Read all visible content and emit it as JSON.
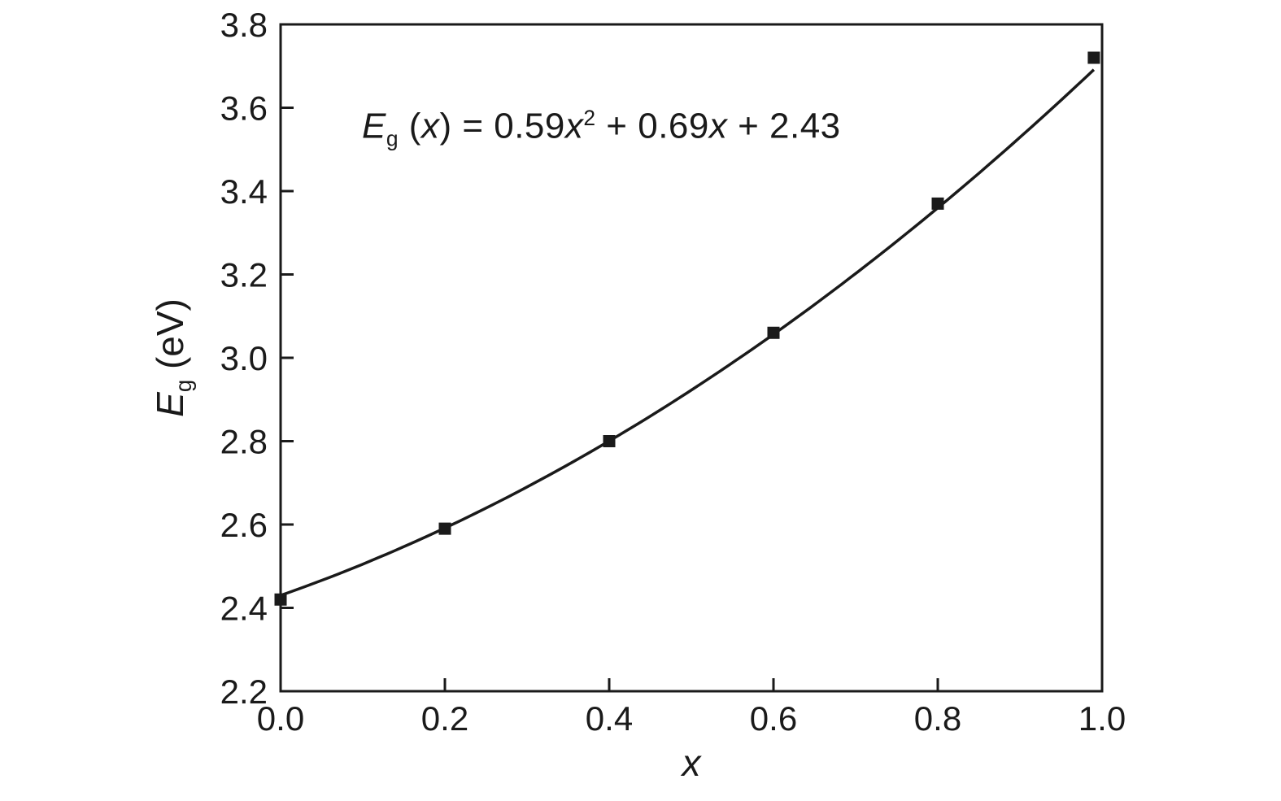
{
  "chart_data": {
    "type": "line",
    "title": "",
    "xlabel": "x",
    "ylabel": "Eg (eV)",
    "xlim": [
      0.0,
      1.0
    ],
    "ylim": [
      2.2,
      3.8
    ],
    "x_ticks": [
      0.0,
      0.2,
      0.4,
      0.6,
      0.8,
      1.0
    ],
    "y_ticks": [
      2.2,
      2.4,
      2.6,
      2.8,
      3.0,
      3.2,
      3.4,
      3.6,
      3.8
    ],
    "grid": false,
    "legend": "none",
    "equation_text": "Eg (x) = 0.59x² + 0.69x + 2.43",
    "equation": {
      "var": "E",
      "sub": "g",
      "pre_arg": " (",
      "arg": "x",
      "post_arg": ") = ",
      "c1": "0.59",
      "v1": "x",
      "exp": "2",
      "op1": " + ",
      "c2": "0.69",
      "v2": "x",
      "op2": " + ",
      "c3": "2.43"
    },
    "fit_coefficients": {
      "a": 0.59,
      "b": 0.69,
      "c": 2.43
    },
    "series": [
      {
        "name": "measured-band-gap-points",
        "marker": "square",
        "x": [
          0.0,
          0.2,
          0.4,
          0.6,
          0.8,
          0.99
        ],
        "y": [
          2.42,
          2.59,
          2.8,
          3.06,
          3.37,
          3.72
        ]
      },
      {
        "name": "quadratic-fit-curve",
        "type": "quadratic-fit"
      }
    ],
    "axis_titles": {
      "y_var": "E",
      "y_sub": "g",
      "y_units": " (eV)",
      "x_var": "x"
    },
    "colors": {
      "axis": "#1a1a1a",
      "line": "#1a1a1a",
      "marker": "#1a1a1a",
      "background": "#ffffff"
    }
  }
}
